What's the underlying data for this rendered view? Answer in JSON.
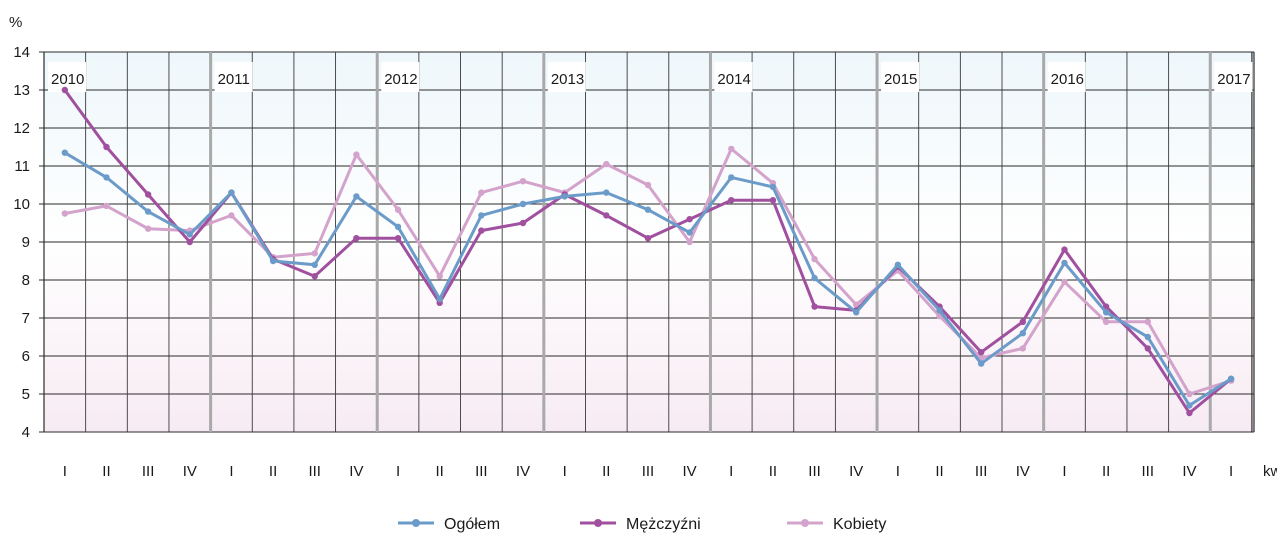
{
  "chart_data": {
    "type": "line",
    "ylabel": "%",
    "xlabel": "kw.",
    "ylim": [
      4,
      14
    ],
    "yticks": [
      "4",
      "5",
      "6",
      "7",
      "8",
      "9",
      "10",
      "11",
      "12",
      "13",
      "14"
    ],
    "quarter_labels": [
      "I",
      "II",
      "III",
      "IV",
      "I",
      "II",
      "III",
      "IV",
      "I",
      "II",
      "III",
      "IV",
      "I",
      "II",
      "III",
      "IV",
      "I",
      "II",
      "III",
      "IV",
      "I",
      "II",
      "III",
      "IV",
      "I",
      "II",
      "III",
      "IV",
      "I"
    ],
    "years": [
      "2010",
      "2011",
      "2012",
      "2013",
      "2014",
      "2015",
      "2016",
      "2017"
    ],
    "grid": true,
    "legend_position": "bottom",
    "series": [
      {
        "name": "Ogółem",
        "color": "#6b9bc8",
        "values": [
          11.35,
          10.7,
          9.8,
          9.2,
          10.3,
          8.5,
          8.4,
          10.2,
          9.4,
          7.5,
          9.7,
          10.0,
          10.2,
          10.3,
          9.85,
          9.25,
          10.7,
          10.45,
          8.05,
          7.15,
          8.4,
          7.2,
          5.8,
          6.6,
          8.45,
          7.15,
          6.5,
          4.7,
          5.4
        ]
      },
      {
        "name": "Mężczyźni",
        "color": "#a0509e",
        "values": [
          13.0,
          11.5,
          10.25,
          9.0,
          10.3,
          8.55,
          8.1,
          9.1,
          9.1,
          7.4,
          9.3,
          9.5,
          10.25,
          9.7,
          9.1,
          9.6,
          10.1,
          10.1,
          7.3,
          7.2,
          8.35,
          7.3,
          6.1,
          6.9,
          8.8,
          7.3,
          6.2,
          4.5,
          5.4
        ]
      },
      {
        "name": "Kobiety",
        "color": "#d3a3cc",
        "values": [
          9.75,
          9.95,
          9.35,
          9.3,
          9.7,
          8.6,
          8.7,
          11.3,
          9.85,
          8.1,
          10.3,
          10.6,
          10.3,
          11.05,
          10.5,
          9.0,
          11.45,
          10.55,
          8.55,
          7.35,
          8.25,
          7.05,
          5.95,
          6.2,
          7.95,
          6.9,
          6.9,
          5.0,
          5.35
        ]
      }
    ]
  }
}
